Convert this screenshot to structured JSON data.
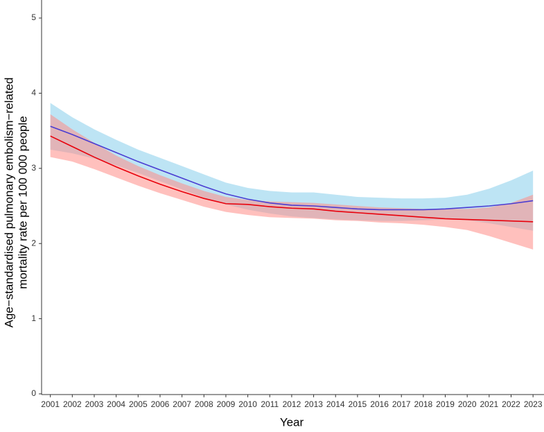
{
  "chart_data": {
    "type": "line",
    "xlabel": "Year",
    "ylabel": [
      "Age−standardised pulmonary embolism−related",
      "mortality rate per 100 000 people"
    ],
    "x": [
      2001,
      2002,
      2003,
      2004,
      2005,
      2006,
      2007,
      2008,
      2009,
      2010,
      2011,
      2012,
      2013,
      2014,
      2015,
      2016,
      2017,
      2018,
      2019,
      2020,
      2021,
      2022,
      2023
    ],
    "xlim": [
      2000.6,
      2023.5
    ],
    "xticks": [
      2001,
      2002,
      2003,
      2004,
      2005,
      2006,
      2007,
      2008,
      2009,
      2010,
      2011,
      2012,
      2013,
      2014,
      2015,
      2016,
      2017,
      2018,
      2019,
      2020,
      2021,
      2022,
      2023
    ],
    "ylim": [
      0,
      5.24
    ],
    "yticks": [
      0,
      1,
      2,
      3,
      4,
      5
    ],
    "series": [
      {
        "color": "#4a3cd2",
        "band_color": "#87ceeb",
        "band_opacity": 0.55,
        "values": [
          3.56,
          3.45,
          3.33,
          3.21,
          3.09,
          2.98,
          2.87,
          2.76,
          2.66,
          2.59,
          2.54,
          2.51,
          2.5,
          2.48,
          2.46,
          2.45,
          2.45,
          2.45,
          2.46,
          2.48,
          2.5,
          2.53,
          2.57
        ],
        "upper": [
          3.87,
          3.68,
          3.52,
          3.38,
          3.25,
          3.14,
          3.03,
          2.92,
          2.81,
          2.74,
          2.7,
          2.68,
          2.68,
          2.65,
          2.62,
          2.61,
          2.6,
          2.6,
          2.61,
          2.65,
          2.73,
          2.84,
          2.97
        ],
        "lower": [
          3.25,
          3.2,
          3.13,
          3.04,
          2.94,
          2.83,
          2.72,
          2.61,
          2.52,
          2.45,
          2.4,
          2.36,
          2.34,
          2.32,
          2.31,
          2.3,
          2.3,
          2.31,
          2.32,
          2.31,
          2.27,
          2.22,
          2.17
        ]
      },
      {
        "color": "#e8000b",
        "band_color": "#ff8c87",
        "band_opacity": 0.55,
        "values": [
          3.43,
          3.29,
          3.15,
          3.02,
          2.9,
          2.79,
          2.69,
          2.6,
          2.53,
          2.52,
          2.49,
          2.47,
          2.46,
          2.43,
          2.41,
          2.39,
          2.37,
          2.35,
          2.33,
          2.32,
          2.31,
          2.3,
          2.29
        ],
        "upper": [
          3.72,
          3.52,
          3.34,
          3.17,
          3.03,
          2.91,
          2.8,
          2.7,
          2.62,
          2.58,
          2.56,
          2.55,
          2.54,
          2.52,
          2.5,
          2.48,
          2.47,
          2.46,
          2.46,
          2.46,
          2.48,
          2.54,
          2.65
        ],
        "lower": [
          3.15,
          3.09,
          2.99,
          2.88,
          2.77,
          2.67,
          2.58,
          2.49,
          2.42,
          2.38,
          2.35,
          2.34,
          2.33,
          2.31,
          2.3,
          2.28,
          2.27,
          2.25,
          2.22,
          2.18,
          2.1,
          2.01,
          1.92
        ]
      }
    ]
  }
}
